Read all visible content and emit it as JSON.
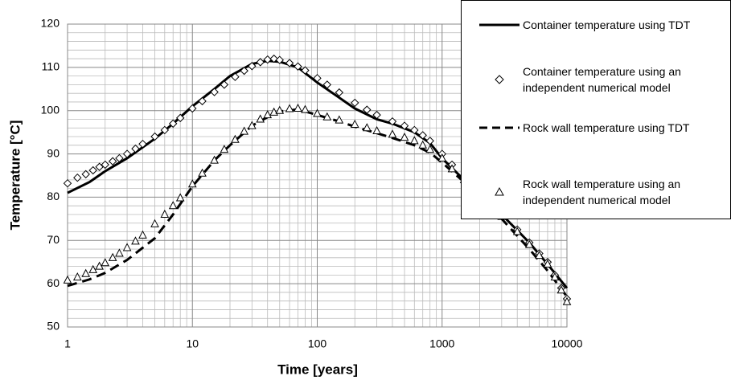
{
  "chart_data": {
    "type": "line",
    "x_label": "Time [years]",
    "y_label": "Temperature [°C]",
    "x_scale": "log",
    "grid": true,
    "xlim": [
      1,
      10000
    ],
    "xticks": [
      1,
      10,
      100,
      1000,
      10000
    ],
    "ylim": [
      50,
      120
    ],
    "yticks": [
      50,
      60,
      70,
      80,
      90,
      100,
      110,
      120
    ],
    "series": [
      {
        "name": "Container temperature using TDT",
        "color": "#000000",
        "style": "solid",
        "x": [
          1,
          1.5,
          2,
          3,
          5,
          7,
          10,
          15,
          20,
          30,
          40,
          50,
          70,
          100,
          150,
          200,
          300,
          400,
          600,
          800,
          1000,
          1500,
          2000,
          3000,
          5000,
          7000,
          10000
        ],
        "values": [
          81,
          83.5,
          86,
          89,
          93.5,
          97,
          101,
          105,
          108,
          110.8,
          111.5,
          111.3,
          110,
          106.5,
          103,
          100.5,
          98,
          97,
          95,
          92.5,
          89,
          84,
          80.5,
          76,
          69.5,
          64.5,
          59
        ]
      },
      {
        "name": "Container temperature using an independent numerical model",
        "color": "#000000",
        "marker": "diamond",
        "x": [
          1,
          1.2,
          1.4,
          1.6,
          1.8,
          2,
          2.3,
          2.6,
          3,
          3.5,
          4,
          5,
          6,
          7,
          8,
          10,
          12,
          15,
          18,
          22,
          26,
          30,
          35,
          40,
          45,
          50,
          60,
          70,
          80,
          100,
          120,
          150,
          200,
          250,
          300,
          400,
          500,
          600,
          700,
          800,
          1000,
          1200,
          1500,
          2000,
          2500,
          3000,
          4000,
          5000,
          6000,
          7000,
          8000,
          9000,
          10000
        ],
        "values": [
          83.2,
          84.5,
          85.3,
          86.2,
          87,
          87.5,
          88.3,
          89,
          90,
          91.2,
          92.3,
          94,
          95.5,
          97,
          98.3,
          100.5,
          102.2,
          104.3,
          106,
          107.8,
          109.2,
          110.3,
          111.2,
          111.8,
          112,
          111.7,
          111,
          110.2,
          109.3,
          107.5,
          106,
          104.2,
          101.8,
          100.2,
          99,
          97.5,
          96.5,
          95.5,
          94.3,
          93,
          90,
          87.5,
          84.5,
          81,
          78.5,
          76,
          72.5,
          69.5,
          67,
          65,
          62,
          59,
          56.5
        ]
      },
      {
        "name": "Rock wall temperature using TDT",
        "color": "#000000",
        "style": "dashed",
        "x": [
          1,
          1.5,
          2,
          3,
          5,
          7,
          10,
          15,
          20,
          30,
          40,
          50,
          70,
          100,
          150,
          200,
          300,
          400,
          600,
          800,
          1000,
          1500,
          2000,
          3000,
          5000,
          7000,
          10000
        ],
        "values": [
          59.5,
          61,
          62.5,
          65.5,
          70.5,
          76,
          82.5,
          88.5,
          92,
          96.5,
          98.5,
          99.8,
          100.3,
          99,
          97.5,
          96.3,
          94.8,
          93.7,
          92,
          90.3,
          88,
          83.5,
          80,
          75,
          68,
          63,
          57
        ]
      },
      {
        "name": "Rock wall temperature using an independent numerical model",
        "color": "#000000",
        "marker": "triangle",
        "x": [
          1,
          1.2,
          1.4,
          1.6,
          1.8,
          2,
          2.3,
          2.6,
          3,
          3.5,
          4,
          5,
          6,
          7,
          8,
          10,
          12,
          15,
          18,
          22,
          26,
          30,
          35,
          40,
          45,
          50,
          60,
          70,
          80,
          100,
          120,
          150,
          200,
          250,
          300,
          400,
          500,
          600,
          700,
          800,
          1000,
          1200,
          1500,
          2000,
          2500,
          3000,
          4000,
          5000,
          6000,
          7000,
          8000,
          9000,
          10000
        ],
        "values": [
          60.8,
          61.5,
          62.3,
          63.2,
          64,
          64.8,
          66,
          67,
          68.3,
          69.8,
          71.2,
          73.8,
          76,
          78,
          79.8,
          83,
          85.5,
          88.5,
          91,
          93.3,
          95.2,
          96.5,
          98,
          99,
          99.6,
          100,
          100.4,
          100.5,
          100.2,
          99.3,
          98.5,
          97.8,
          96.8,
          96,
          95.3,
          94.5,
          93.8,
          93,
          92,
          91,
          89,
          86.5,
          84,
          80.5,
          78,
          75.5,
          72,
          69,
          66.5,
          64.5,
          61.5,
          58.5,
          55.8
        ]
      }
    ]
  }
}
